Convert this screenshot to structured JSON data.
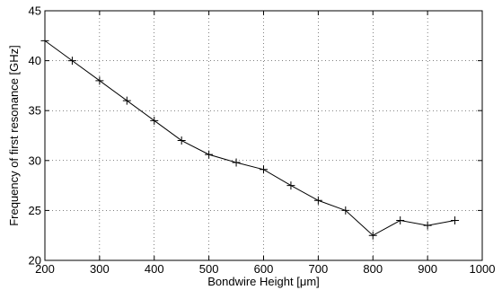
{
  "chart_data": {
    "type": "line",
    "xlabel": "Bondwire Height [μm]",
    "ylabel": "Frequency of first resonance [GHz]",
    "xlim": [
      200,
      1000
    ],
    "ylim": [
      20,
      45
    ],
    "xticks": [
      200,
      300,
      400,
      500,
      600,
      700,
      800,
      900,
      1000
    ],
    "yticks": [
      20,
      25,
      30,
      35,
      40,
      45
    ],
    "grid": true,
    "marker": "plus",
    "color": "#000000",
    "series": [
      {
        "x": [
          200,
          250,
          300,
          350,
          400,
          450,
          500,
          550,
          600,
          650,
          700,
          750,
          800,
          850,
          900,
          950
        ],
        "y": [
          42,
          40,
          38,
          36,
          34,
          32,
          30.6,
          29.8,
          29.1,
          27.5,
          26,
          25,
          22.5,
          24,
          23.5,
          24
        ]
      }
    ]
  }
}
